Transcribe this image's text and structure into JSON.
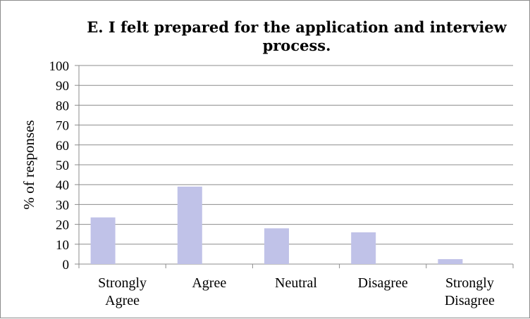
{
  "chart_data": {
    "type": "bar",
    "title_lines": [
      "E. I felt prepared for the application and interview",
      "process."
    ],
    "xlabel": "",
    "ylabel": "% of responses",
    "categories": [
      [
        "Strongly",
        "Agree"
      ],
      [
        "Agree"
      ],
      [
        "Neutral"
      ],
      [
        "Disagree"
      ],
      [
        "Strongly",
        "Disagree"
      ]
    ],
    "values": [
      23.5,
      39,
      18,
      16,
      2.5
    ],
    "ylim": [
      0,
      100
    ],
    "yticks": [
      "0",
      "10",
      "20",
      "30",
      "40",
      "50",
      "60",
      "70",
      "80",
      "90",
      "100"
    ],
    "grid": true,
    "legend": "none",
    "bar_color": "#c0c2e8"
  }
}
